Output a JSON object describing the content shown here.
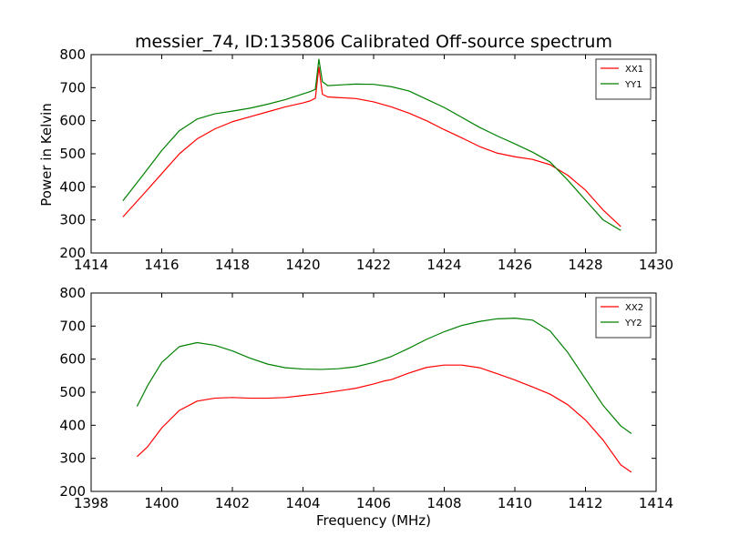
{
  "title": "messier_74, ID:135806 Calibrated Off-source spectrum",
  "chart_data": [
    {
      "type": "line",
      "xlabel": "",
      "ylabel": "Power in Kelvin",
      "xlim": [
        1414,
        1430
      ],
      "ylim": [
        200,
        800
      ],
      "xticks": [
        1414,
        1416,
        1418,
        1420,
        1422,
        1424,
        1426,
        1428,
        1430
      ],
      "yticks": [
        200,
        300,
        400,
        500,
        600,
        700,
        800
      ],
      "legend_position": "top-right",
      "grid": false,
      "series": [
        {
          "name": "XX1",
          "color": "#ff0000",
          "points": [
            [
              1414.9,
              309
            ],
            [
              1415.5,
              380
            ],
            [
              1416,
              440
            ],
            [
              1416.5,
              500
            ],
            [
              1417,
              545
            ],
            [
              1417.5,
              575
            ],
            [
              1418,
              597
            ],
            [
              1418.5,
              612
            ],
            [
              1419,
              627
            ],
            [
              1419.5,
              642
            ],
            [
              1420,
              654
            ],
            [
              1420.2,
              660
            ],
            [
              1420.35,
              668
            ],
            [
              1420.45,
              762
            ],
            [
              1420.55,
              680
            ],
            [
              1420.7,
              672
            ],
            [
              1421,
              670
            ],
            [
              1421.5,
              667
            ],
            [
              1422,
              657
            ],
            [
              1422.5,
              642
            ],
            [
              1423,
              623
            ],
            [
              1423.5,
              600
            ],
            [
              1424,
              573
            ],
            [
              1424.5,
              548
            ],
            [
              1425,
              522
            ],
            [
              1425.5,
              502
            ],
            [
              1426,
              491
            ],
            [
              1426.5,
              483
            ],
            [
              1427,
              467
            ],
            [
              1427.5,
              435
            ],
            [
              1428,
              390
            ],
            [
              1428.5,
              330
            ],
            [
              1429,
              280
            ]
          ]
        },
        {
          "name": "YY1",
          "color": "#008000",
          "points": [
            [
              1414.9,
              358
            ],
            [
              1415.5,
              440
            ],
            [
              1416,
              510
            ],
            [
              1416.5,
              570
            ],
            [
              1417,
              605
            ],
            [
              1417.5,
              621
            ],
            [
              1418,
              629
            ],
            [
              1418.5,
              638
            ],
            [
              1419,
              650
            ],
            [
              1419.5,
              664
            ],
            [
              1420,
              681
            ],
            [
              1420.2,
              688
            ],
            [
              1420.35,
              695
            ],
            [
              1420.45,
              786
            ],
            [
              1420.55,
              718
            ],
            [
              1420.7,
              706
            ],
            [
              1421,
              708
            ],
            [
              1421.5,
              711
            ],
            [
              1422,
              710
            ],
            [
              1422.5,
              703
            ],
            [
              1423,
              690
            ],
            [
              1423.5,
              665
            ],
            [
              1424,
              640
            ],
            [
              1424.5,
              610
            ],
            [
              1425,
              580
            ],
            [
              1425.5,
              554
            ],
            [
              1426,
              530
            ],
            [
              1426.5,
              505
            ],
            [
              1427,
              475
            ],
            [
              1427.5,
              420
            ],
            [
              1428,
              360
            ],
            [
              1428.5,
              300
            ],
            [
              1429,
              268
            ]
          ]
        }
      ]
    },
    {
      "type": "line",
      "xlabel": "Frequency (MHz)",
      "ylabel": "",
      "xlim": [
        1398,
        1414
      ],
      "ylim": [
        200,
        800
      ],
      "xticks": [
        1398,
        1400,
        1402,
        1404,
        1406,
        1408,
        1410,
        1412,
        1414
      ],
      "yticks": [
        200,
        300,
        400,
        500,
        600,
        700,
        800
      ],
      "legend_position": "top-right",
      "grid": false,
      "series": [
        {
          "name": "XX2",
          "color": "#ff0000",
          "points": [
            [
              1399.3,
              305
            ],
            [
              1399.6,
              335
            ],
            [
              1400,
              392
            ],
            [
              1400.5,
              445
            ],
            [
              1401,
              473
            ],
            [
              1401.5,
              482
            ],
            [
              1402,
              484
            ],
            [
              1402.5,
              482
            ],
            [
              1403,
              482
            ],
            [
              1403.5,
              484
            ],
            [
              1404,
              490
            ],
            [
              1404.5,
              496
            ],
            [
              1405,
              504
            ],
            [
              1405.5,
              512
            ],
            [
              1406,
              525
            ],
            [
              1406.3,
              534
            ],
            [
              1406.5,
              538
            ],
            [
              1407,
              558
            ],
            [
              1407.5,
              575
            ],
            [
              1408,
              582
            ],
            [
              1408.5,
              582
            ],
            [
              1409,
              574
            ],
            [
              1409.5,
              556
            ],
            [
              1410,
              537
            ],
            [
              1410.5,
              516
            ],
            [
              1411,
              494
            ],
            [
              1411.5,
              462
            ],
            [
              1412,
              416
            ],
            [
              1412.5,
              355
            ],
            [
              1413,
              280
            ],
            [
              1413.3,
              258
            ]
          ]
        },
        {
          "name": "YY2",
          "color": "#008000",
          "points": [
            [
              1399.3,
              457
            ],
            [
              1399.6,
              520
            ],
            [
              1400,
              590
            ],
            [
              1400.5,
              638
            ],
            [
              1401,
              650
            ],
            [
              1401.5,
              642
            ],
            [
              1402,
              625
            ],
            [
              1402.5,
              603
            ],
            [
              1403,
              585
            ],
            [
              1403.5,
              574
            ],
            [
              1404,
              570
            ],
            [
              1404.5,
              569
            ],
            [
              1405,
              571
            ],
            [
              1405.5,
              577
            ],
            [
              1406,
              590
            ],
            [
              1406.5,
              608
            ],
            [
              1407,
              633
            ],
            [
              1407.5,
              660
            ],
            [
              1408,
              683
            ],
            [
              1408.5,
              702
            ],
            [
              1409,
              714
            ],
            [
              1409.5,
              722
            ],
            [
              1410,
              724
            ],
            [
              1410.5,
              718
            ],
            [
              1411,
              685
            ],
            [
              1411.5,
              620
            ],
            [
              1412,
              540
            ],
            [
              1412.5,
              460
            ],
            [
              1413,
              398
            ],
            [
              1413.3,
              375
            ]
          ]
        }
      ]
    }
  ]
}
